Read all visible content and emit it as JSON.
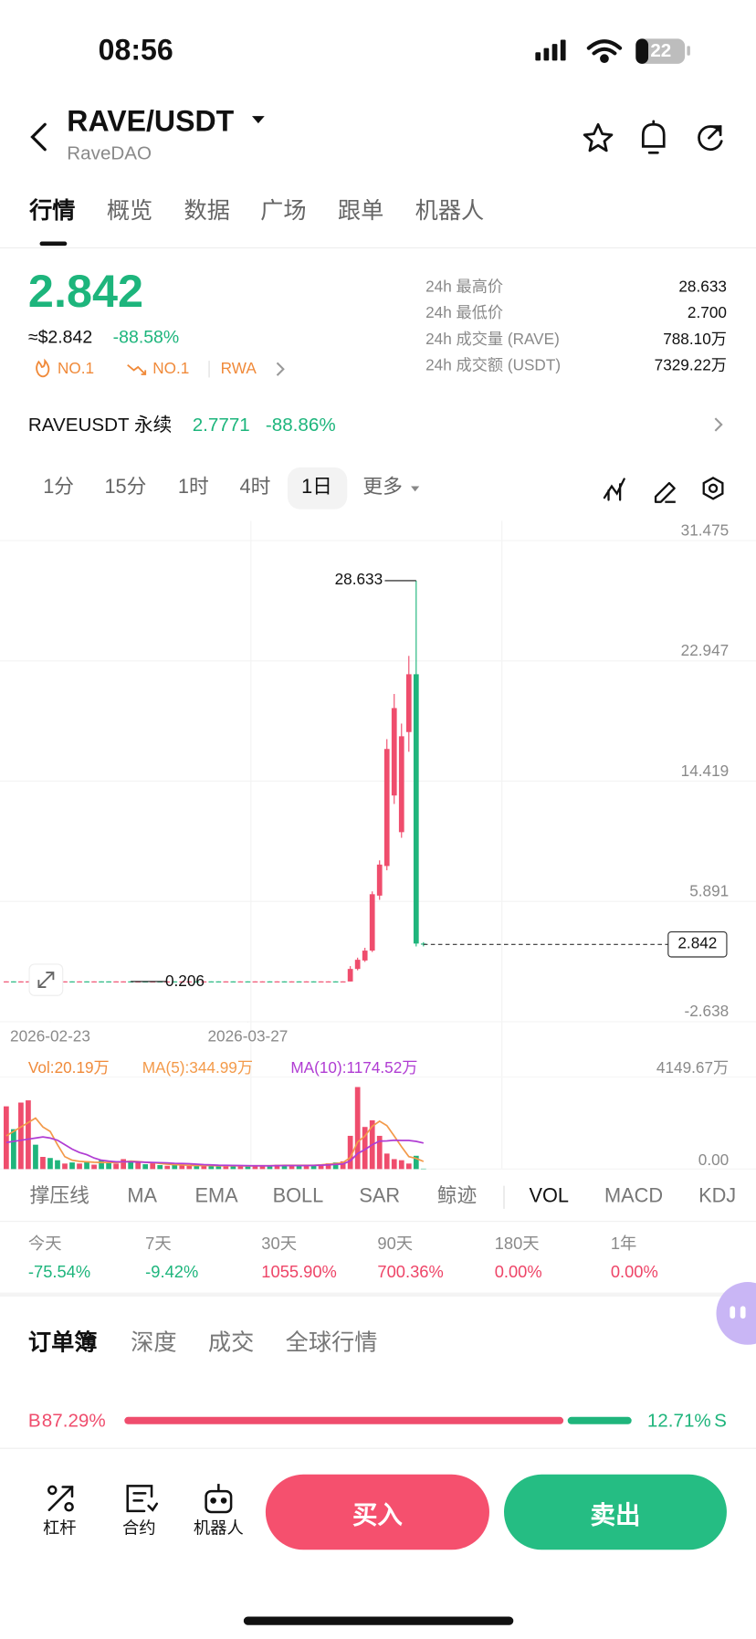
{
  "status_bar": {
    "time": "08:56",
    "battery": "22"
  },
  "header": {
    "pair": "RAVE/USDT",
    "project": "RaveDAO"
  },
  "tabs": [
    "行情",
    "概览",
    "数据",
    "广场",
    "跟单",
    "机器人"
  ],
  "ticker": {
    "price": "2.842",
    "usd_price": "≈$2.842",
    "change": "-88.58%",
    "tags": [
      "NO.1",
      "NO.1",
      "RWA"
    ]
  },
  "stats": [
    {
      "label": "24h 最高价",
      "value": "28.633"
    },
    {
      "label": "24h 最低价",
      "value": "2.700"
    },
    {
      "label": "24h 成交量 (RAVE)",
      "value": "788.10万"
    },
    {
      "label": "24h 成交额 (USDT)",
      "value": "7329.22万"
    }
  ],
  "perpetual": {
    "name": "RAVEUSDT 永续",
    "price": "2.7771",
    "change": "-88.86%"
  },
  "intervals": [
    "1分",
    "15分",
    "1时",
    "4时",
    "1日",
    "更多"
  ],
  "chart_data": {
    "type": "candlestick",
    "up_color": "#ef4d6d",
    "down_color": "#1fb57c",
    "ohlc": [
      [
        0.21,
        0.22,
        0.207,
        0.218
      ],
      [
        0.218,
        0.22,
        0.207,
        0.21
      ],
      [
        0.21,
        0.22,
        0.207,
        0.218
      ],
      [
        0.21,
        0.22,
        0.207,
        0.218
      ],
      [
        0.218,
        0.22,
        0.207,
        0.21
      ],
      [
        0.21,
        0.22,
        0.207,
        0.218
      ],
      [
        0.218,
        0.22,
        0.207,
        0.21
      ],
      [
        0.218,
        0.22,
        0.207,
        0.21
      ],
      [
        0.21,
        0.22,
        0.207,
        0.218
      ],
      [
        0.218,
        0.22,
        0.207,
        0.21
      ],
      [
        0.21,
        0.22,
        0.207,
        0.218
      ],
      [
        0.218,
        0.22,
        0.207,
        0.21
      ],
      [
        0.21,
        0.22,
        0.207,
        0.218
      ],
      [
        0.218,
        0.22,
        0.207,
        0.21
      ],
      [
        0.218,
        0.22,
        0.207,
        0.21
      ],
      [
        0.21,
        0.22,
        0.207,
        0.218
      ],
      [
        0.21,
        0.22,
        0.207,
        0.218
      ],
      [
        0.218,
        0.22,
        0.207,
        0.21
      ],
      [
        0.21,
        0.22,
        0.207,
        0.218
      ],
      [
        0.218,
        0.22,
        0.207,
        0.21
      ],
      [
        0.21,
        0.22,
        0.207,
        0.218
      ],
      [
        0.218,
        0.22,
        0.207,
        0.21
      ],
      [
        0.21,
        0.22,
        0.206,
        0.212
      ],
      [
        0.218,
        0.22,
        0.207,
        0.21
      ],
      [
        0.21,
        0.22,
        0.207,
        0.218
      ],
      [
        0.21,
        0.22,
        0.207,
        0.218
      ],
      [
        0.218,
        0.22,
        0.207,
        0.21
      ],
      [
        0.21,
        0.22,
        0.207,
        0.218
      ],
      [
        0.218,
        0.22,
        0.207,
        0.21
      ],
      [
        0.218,
        0.22,
        0.207,
        0.21
      ],
      [
        0.21,
        0.22,
        0.207,
        0.218
      ],
      [
        0.218,
        0.22,
        0.207,
        0.21
      ],
      [
        0.21,
        0.22,
        0.207,
        0.218
      ],
      [
        0.218,
        0.22,
        0.207,
        0.21
      ],
      [
        0.21,
        0.22,
        0.207,
        0.218
      ],
      [
        0.21,
        0.22,
        0.207,
        0.218
      ],
      [
        0.218,
        0.22,
        0.207,
        0.21
      ],
      [
        0.21,
        0.22,
        0.207,
        0.218
      ],
      [
        0.218,
        0.22,
        0.207,
        0.21
      ],
      [
        0.21,
        0.22,
        0.207,
        0.218
      ],
      [
        0.218,
        0.22,
        0.207,
        0.21
      ],
      [
        0.21,
        0.22,
        0.207,
        0.218
      ],
      [
        0.218,
        0.22,
        0.207,
        0.21
      ],
      [
        0.21,
        0.22,
        0.207,
        0.218
      ],
      [
        0.21,
        0.22,
        0.207,
        0.218
      ],
      [
        0.218,
        0.22,
        0.207,
        0.21
      ],
      [
        0.21,
        0.22,
        0.207,
        0.218
      ],
      [
        0.21,
        1.3,
        0.207,
        1.1
      ],
      [
        1.1,
        1.9,
        1.0,
        1.75
      ],
      [
        1.7,
        2.6,
        1.6,
        2.4
      ],
      [
        2.4,
        6.6,
        2.3,
        6.4
      ],
      [
        6.3,
        8.8,
        6.0,
        8.5
      ],
      [
        8.4,
        17.4,
        8.1,
        16.7
      ],
      [
        13.4,
        20.6,
        12.8,
        19.6
      ],
      [
        10.8,
        18.5,
        10.4,
        17.6
      ],
      [
        17.9,
        23.3,
        16.5,
        22.0
      ],
      [
        22.0,
        28.633,
        2.7,
        2.9
      ],
      [
        2.9,
        3.0,
        2.7,
        2.842
      ]
    ],
    "ylim": [
      -2.638,
      31.475
    ],
    "yticks": [
      31.475,
      22.947,
      14.419,
      5.891,
      -2.638
    ],
    "xticks": [
      {
        "value": 6,
        "label": "2026-02-23"
      },
      {
        "value": 33,
        "label": "2026-03-27"
      }
    ],
    "high_annotation": 28.633,
    "low_annotation": 0.206,
    "last_price": 2.842,
    "volume": {
      "legend": "Vol:20.19万",
      "ylim": [
        0,
        4149.67
      ],
      "yticks": [
        {
          "value": 4149.67,
          "label": "4149.67万"
        },
        {
          "value": 0,
          "label": "0.00"
        }
      ],
      "values": [
        2830,
        1800,
        3000,
        3100,
        1100,
        550,
        500,
        400,
        250,
        300,
        250,
        350,
        200,
        400,
        300,
        250,
        450,
        380,
        300,
        220,
        260,
        180,
        150,
        200,
        170,
        140,
        160,
        190,
        150,
        130,
        170,
        160,
        140,
        120,
        150,
        180,
        170,
        200,
        160,
        140,
        150,
        170,
        200,
        220,
        260,
        300,
        350,
        1500,
        3700,
        1900,
        2200,
        1500,
        700,
        450,
        400,
        250,
        600,
        20.19
      ],
      "series": [
        {
          "name": "MA(5):344.99万",
          "color": "#f39a4a",
          "values": [
            1500,
            1700,
            1900,
            2100,
            2300,
            1900,
            1700,
            1100,
            560,
            400,
            350,
            330,
            310,
            300,
            300,
            300,
            320,
            360,
            340,
            310,
            290,
            250,
            220,
            200,
            190,
            170,
            160,
            160,
            160,
            150,
            150,
            150,
            150,
            140,
            150,
            150,
            150,
            160,
            170,
            170,
            170,
            170,
            170,
            190,
            220,
            250,
            290,
            520,
            1220,
            1490,
            1930,
            2160,
            1960,
            1490,
            1010,
            560,
            480,
            344.99
          ]
        },
        {
          "name": "MA(10):1174.52万",
          "color": "#b03cd3",
          "values": [
            1200,
            1250,
            1300,
            1350,
            1400,
            1450,
            1400,
            1300,
            1100,
            900,
            750,
            650,
            500,
            400,
            360,
            330,
            330,
            330,
            320,
            310,
            300,
            290,
            280,
            260,
            250,
            240,
            220,
            200,
            190,
            175,
            170,
            165,
            160,
            155,
            150,
            150,
            150,
            155,
            160,
            160,
            160,
            160,
            165,
            175,
            190,
            210,
            230,
            370,
            700,
            880,
            1100,
            1260,
            1270,
            1300,
            1290,
            1290,
            1250,
            1174.52
          ]
        }
      ]
    }
  },
  "indicators": [
    "撑压线",
    "MA",
    "EMA",
    "BOLL",
    "SAR",
    "鲸迹",
    "VOL",
    "MACD",
    "KDJ"
  ],
  "returns": [
    {
      "period": "今天",
      "value": "-75.54%"
    },
    {
      "period": "7天",
      "value": "-9.42%"
    },
    {
      "period": "30天",
      "value": "1055.90%"
    },
    {
      "period": "90天",
      "value": "700.36%"
    },
    {
      "period": "180天",
      "value": "0.00%"
    },
    {
      "period": "1年",
      "value": "0.00%"
    }
  ],
  "book_tabs": [
    "订单簿",
    "深度",
    "成交",
    "全球行情"
  ],
  "ratio": {
    "buy": {
      "label": "B",
      "value": 87.29,
      "value_label": "87.29%",
      "color": "#ef4d6d"
    },
    "sell": {
      "label": "S",
      "value": 12.71,
      "value_label": "12.71%",
      "color": "#1fb57c"
    }
  },
  "bottom_bar": {
    "tools": [
      "杠杆",
      "合约",
      "机器人"
    ],
    "buy": "买入",
    "sell": "卖出"
  }
}
